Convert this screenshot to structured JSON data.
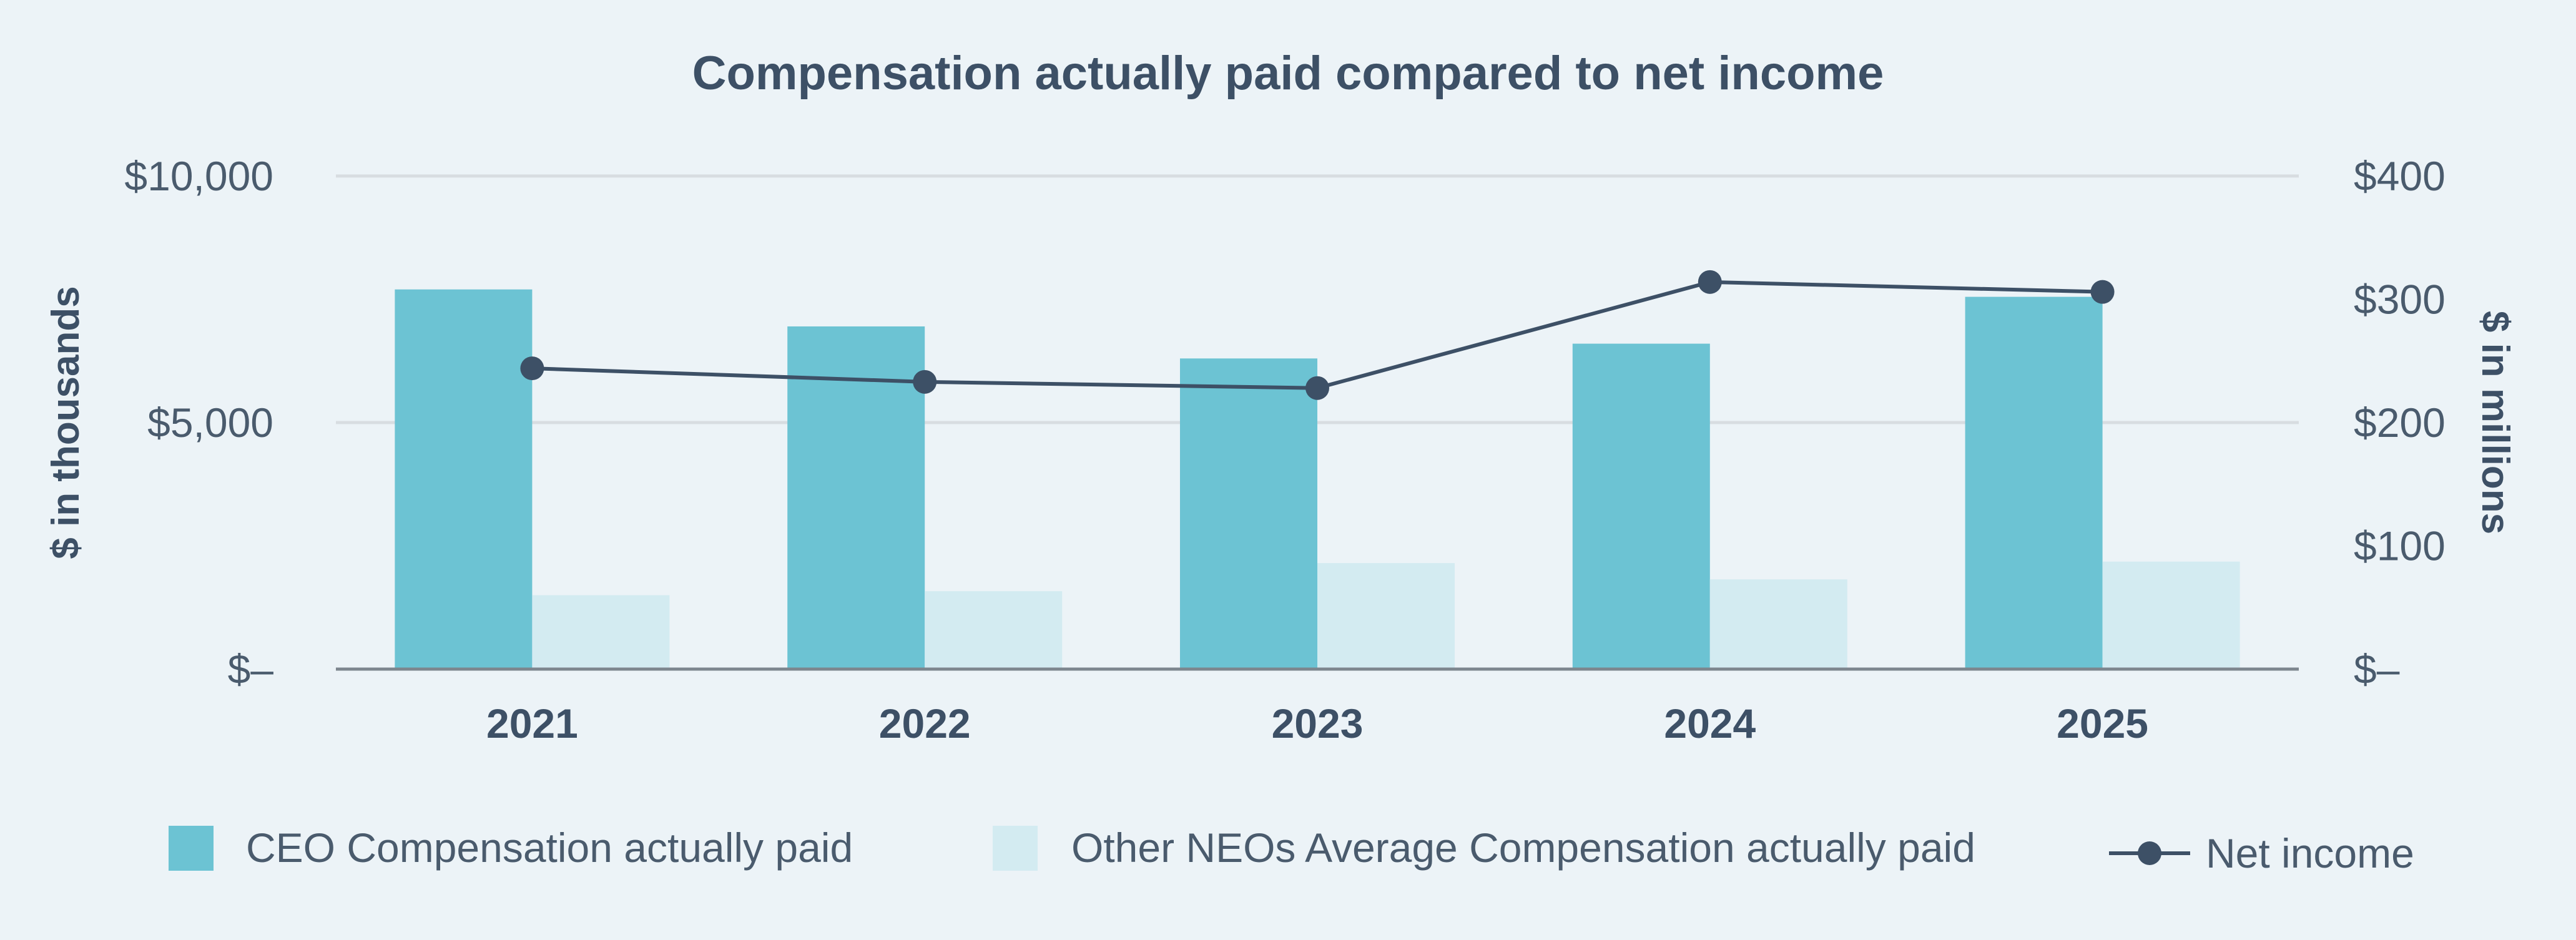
{
  "chart_data": {
    "type": "bar",
    "title": "Compensation actually paid compared to net income",
    "categories": [
      "2021",
      "2022",
      "2023",
      "2024",
      "2025"
    ],
    "series": [
      {
        "name": "CEO Compensation actually paid",
        "type": "bar",
        "axis": "left",
        "color": "#6cc3d3",
        "values": [
          7700,
          6950,
          6300,
          6600,
          7550
        ]
      },
      {
        "name": "Other NEOs Average Compensation actually paid",
        "type": "bar",
        "axis": "left",
        "color": "#d3ebf1",
        "values": [
          1500,
          1580,
          2150,
          1820,
          2180
        ]
      },
      {
        "name": "Net income",
        "type": "line",
        "axis": "right",
        "color": "#3d5066",
        "values": [
          244,
          233,
          228,
          314,
          306
        ]
      }
    ],
    "y_left": {
      "label": "$ in thousands",
      "min": 0,
      "max": 10000,
      "ticks": [
        0,
        5000,
        10000
      ],
      "tick_labels": [
        "$–",
        "$5,000",
        "$10,000"
      ]
    },
    "y_right": {
      "label": "$ in millions",
      "min": 0,
      "max": 400,
      "ticks": [
        0,
        100,
        200,
        300,
        400
      ],
      "tick_labels": [
        "$–",
        "$100",
        "$200",
        "$300",
        "$400"
      ]
    },
    "grid": true,
    "legend_position": "bottom"
  }
}
